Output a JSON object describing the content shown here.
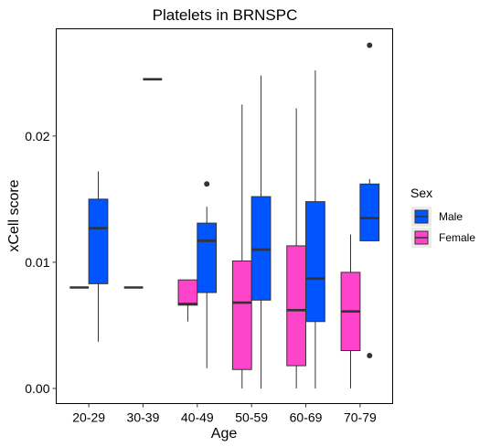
{
  "chart_data": {
    "type": "boxplot",
    "title": "Platelets in BRNSPC",
    "xlabel": "Age",
    "ylabel": "xCell score",
    "categories": [
      "20-29",
      "30-39",
      "40-49",
      "50-59",
      "60-69",
      "70-79"
    ],
    "y_ticks": [
      {
        "value": 0.0,
        "label": "0.00"
      },
      {
        "value": 0.01,
        "label": "0.01"
      },
      {
        "value": 0.02,
        "label": "0.02"
      }
    ],
    "ylim": [
      -0.0012,
      0.0285
    ],
    "grid": false,
    "legend": {
      "title": "Sex",
      "placement": "right",
      "entries": [
        {
          "name": "Male",
          "color": "#0055ff"
        },
        {
          "name": "Female",
          "color": "#ff44cc"
        }
      ]
    },
    "series": [
      {
        "name": "Female",
        "color": "#ff44cc",
        "boxes": [
          {
            "category": "20-29",
            "min": 0.008,
            "q1": 0.008,
            "median": 0.008,
            "q3": 0.008,
            "max": 0.008,
            "outliers": []
          },
          {
            "category": "30-39",
            "min": 0.008,
            "q1": 0.008,
            "median": 0.008,
            "q3": 0.008,
            "max": 0.008,
            "outliers": []
          },
          {
            "category": "40-49",
            "min": 0.0053,
            "q1": 0.0066,
            "median": 0.0067,
            "q3": 0.0086,
            "max": 0.0086,
            "outliers": []
          },
          {
            "category": "50-59",
            "min": 0.0,
            "q1": 0.0015,
            "median": 0.0068,
            "q3": 0.0101,
            "max": 0.0225,
            "outliers": []
          },
          {
            "category": "60-69",
            "min": 0.0,
            "q1": 0.0018,
            "median": 0.0062,
            "q3": 0.0113,
            "max": 0.0222,
            "outliers": []
          },
          {
            "category": "70-79",
            "min": 0.0,
            "q1": 0.003,
            "median": 0.0061,
            "q3": 0.0092,
            "max": 0.0122,
            "outliers": []
          }
        ]
      },
      {
        "name": "Male",
        "color": "#0055ff",
        "boxes": [
          {
            "category": "20-29",
            "min": 0.0037,
            "q1": 0.0083,
            "median": 0.0127,
            "q3": 0.015,
            "max": 0.0172,
            "outliers": []
          },
          {
            "category": "30-39",
            "min": 0.0245,
            "q1": 0.0245,
            "median": 0.0245,
            "q3": 0.0245,
            "max": 0.0245,
            "outliers": []
          },
          {
            "category": "40-49",
            "min": 0.0016,
            "q1": 0.0076,
            "median": 0.0117,
            "q3": 0.0131,
            "max": 0.0144,
            "outliers": [
              0.0162
            ]
          },
          {
            "category": "50-59",
            "min": 0.0,
            "q1": 0.007,
            "median": 0.011,
            "q3": 0.0152,
            "max": 0.0248,
            "outliers": []
          },
          {
            "category": "60-69",
            "min": 0.0,
            "q1": 0.0053,
            "median": 0.0087,
            "q3": 0.0148,
            "max": 0.0252,
            "outliers": []
          },
          {
            "category": "70-79",
            "min": 0.0117,
            "q1": 0.0117,
            "median": 0.0135,
            "q3": 0.0162,
            "max": 0.0166,
            "outliers": [
              0.0272,
              0.0026
            ]
          }
        ]
      }
    ]
  }
}
